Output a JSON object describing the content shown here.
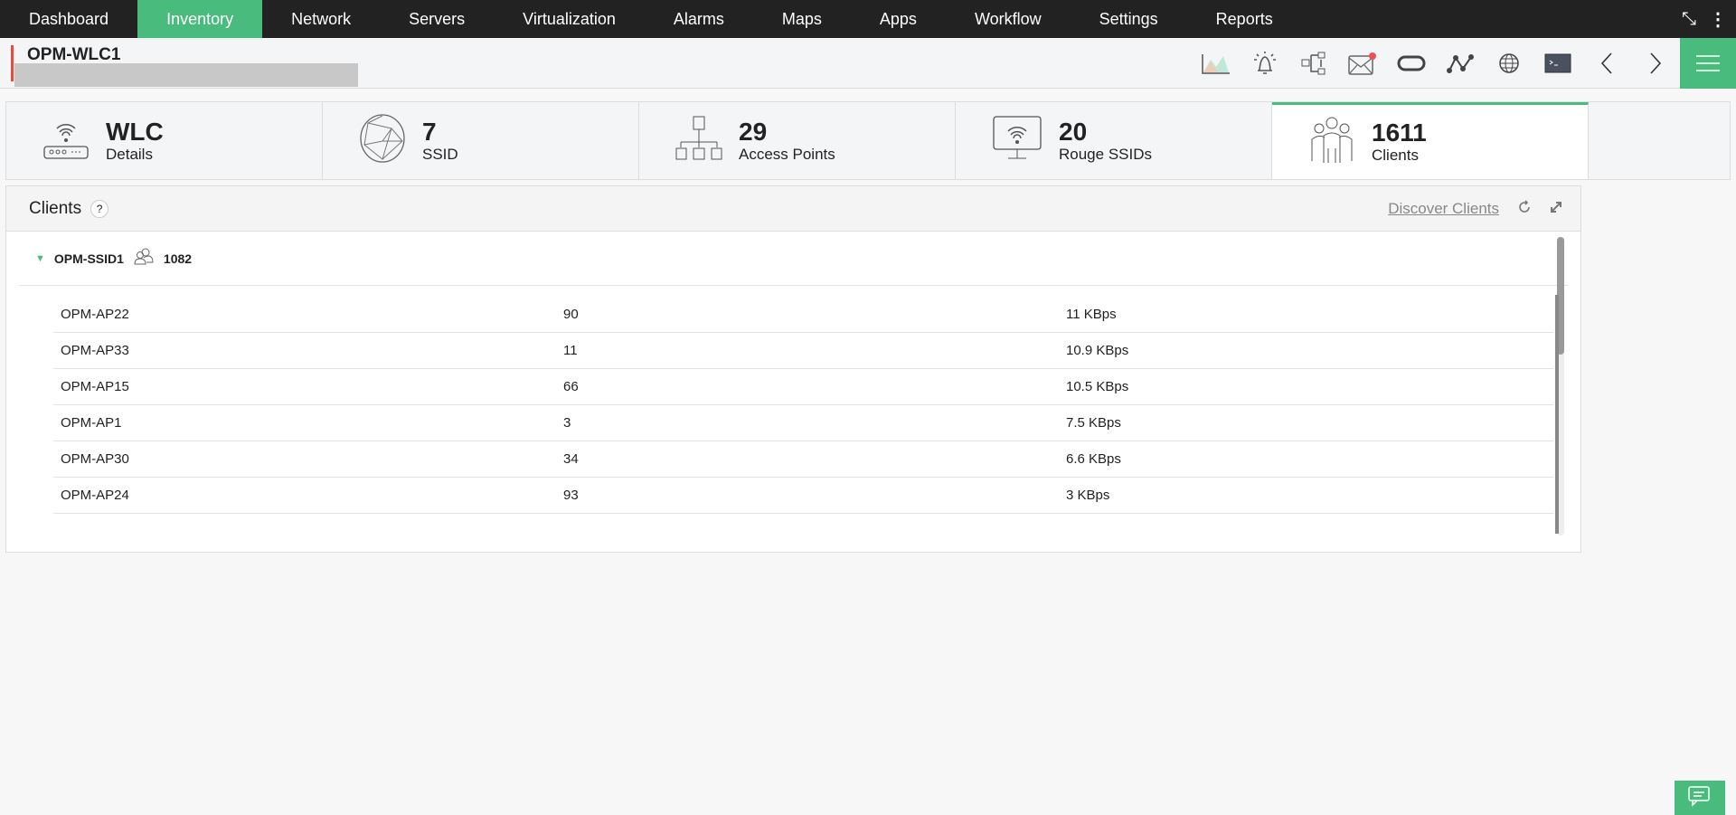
{
  "nav": {
    "items": [
      "Dashboard",
      "Inventory",
      "Network",
      "Servers",
      "Virtualization",
      "Alarms",
      "Maps",
      "Apps",
      "Workflow",
      "Settings",
      "Reports"
    ],
    "active": "Inventory"
  },
  "header": {
    "title": "OPM-WLC1"
  },
  "toolbar": {
    "icons": [
      "chart-icon",
      "alarm-bell-icon",
      "workflow-icon",
      "mail-icon",
      "sync-icon",
      "graph-icon",
      "globe-icon",
      "terminal-icon",
      "chevron-left-icon",
      "chevron-right-icon",
      "menu-icon"
    ]
  },
  "tiles": [
    {
      "value": "WLC",
      "label": "Details",
      "icon": "wlc-router-icon"
    },
    {
      "value": "7",
      "label": "SSID",
      "icon": "globe-network-icon"
    },
    {
      "value": "29",
      "label": "Access Points",
      "icon": "hierarchy-icon"
    },
    {
      "value": "20",
      "label": "Rouge SSIDs",
      "icon": "monitor-wifi-icon"
    },
    {
      "value": "1611",
      "label": "Clients",
      "icon": "users-icon"
    }
  ],
  "panel": {
    "title": "Clients",
    "help": "?",
    "discover": "Discover Clients",
    "group": {
      "name": "OPM-SSID1",
      "count": "1082"
    },
    "rows": [
      [
        "OPM-AP22",
        "90",
        "11 KBps"
      ],
      [
        "OPM-AP33",
        "11",
        "10.9 KBps"
      ],
      [
        "OPM-AP15",
        "66",
        "10.5 KBps"
      ],
      [
        "OPM-AP1",
        "3",
        "7.5 KBps"
      ],
      [
        "OPM-AP30",
        "34",
        "6.6 KBps"
      ],
      [
        "OPM-AP24",
        "93",
        "3 KBps"
      ]
    ]
  },
  "colors": {
    "accent": "#48bb7d",
    "nav_bg": "#222222",
    "alert": "#e74c3c"
  }
}
